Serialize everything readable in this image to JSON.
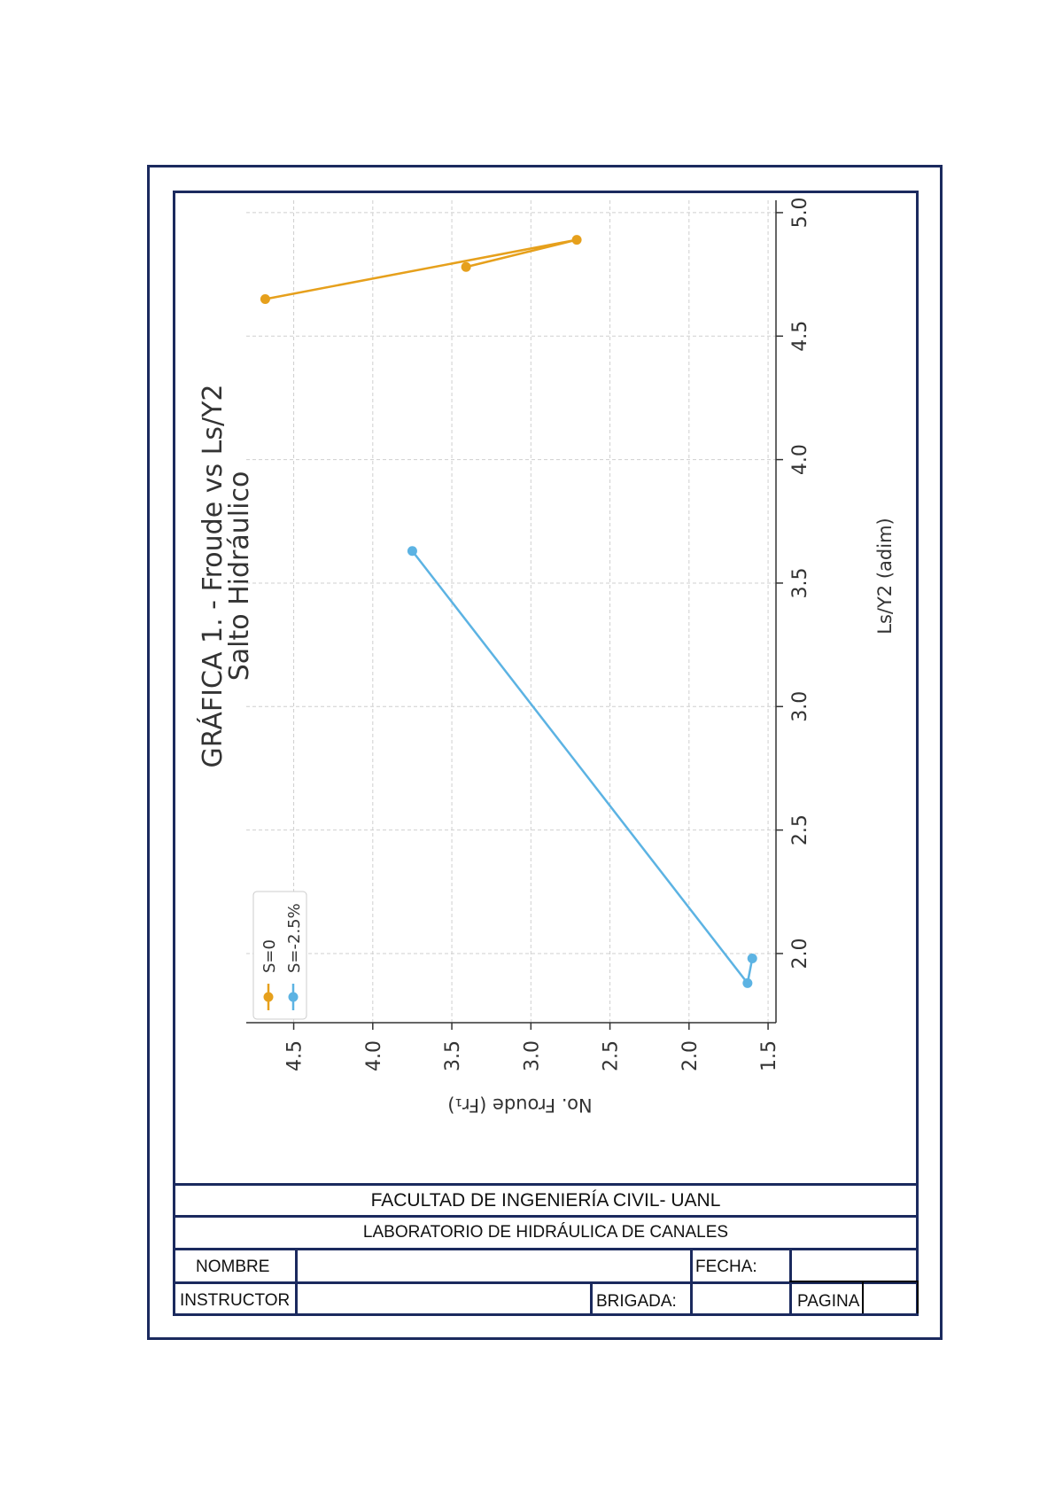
{
  "chart_data": {
    "type": "line",
    "title": "GRÁFICA 1. - Froude vs Ls/Y2",
    "subtitle": "Salto Hidráulico",
    "xlabel": "Ls/Y2 (adim)",
    "ylabel": "No. Froude (Fr₁)",
    "xlim": [
      1.72,
      5.05
    ],
    "ylim": [
      1.45,
      4.8
    ],
    "xticks": [
      "2.0",
      "2.5",
      "3.0",
      "3.5",
      "4.0",
      "4.5",
      "5.0"
    ],
    "yticks": [
      "1.5",
      "2.0",
      "2.5",
      "3.0",
      "3.5",
      "4.0",
      "4.5"
    ],
    "grid": true,
    "legend_position": "lower-left",
    "orientation": "rotated 90° counter-clockwise on the page",
    "series": [
      {
        "name": "S=0",
        "color": "#e6a01c",
        "points": [
          {
            "x": 4.65,
            "y": 4.68
          },
          {
            "x": 4.89,
            "y": 2.71
          },
          {
            "x": 4.78,
            "y": 3.41
          }
        ]
      },
      {
        "name": "S=-2.5%",
        "color": "#5cb3e3",
        "points": [
          {
            "x": 3.63,
            "y": 3.75
          },
          {
            "x": 1.88,
            "y": 1.63
          },
          {
            "x": 1.98,
            "y": 1.6
          }
        ]
      }
    ]
  },
  "title_block": {
    "faculty": "FACULTAD DE INGENIERÍA CIVIL- UANL",
    "lab": "LABORATORIO DE HIDRÁULICA DE CANALES",
    "name_label": "NOMBRE",
    "date_label": "FECHA:",
    "instructor_label": "INSTRUCTOR",
    "brigade_label": "BRIGADA:",
    "page_label": "PAGINA"
  }
}
